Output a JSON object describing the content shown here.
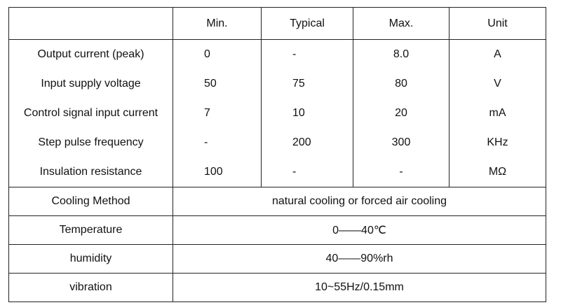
{
  "table": {
    "header": [
      "Min.",
      "Typical",
      "Max.",
      "Unit"
    ],
    "rows": [
      [
        "Output current (peak)",
        "0",
        "-",
        "8.0",
        "A"
      ],
      [
        "Input supply voltage",
        "50",
        "75",
        "80",
        "V"
      ],
      [
        "Control signal input current",
        "7",
        "10",
        "20",
        "mA"
      ],
      [
        "Step pulse frequency",
        "-",
        "200",
        "300",
        "KHz"
      ],
      [
        "Insulation resistance",
        "100",
        "-",
        "-",
        "MΩ"
      ]
    ],
    "merged_rows": [
      [
        "Cooling Method",
        "natural cooling or forced air cooling"
      ],
      [
        "Temperature",
        "0——40℃"
      ],
      [
        "humidity",
        "40——90%rh"
      ],
      [
        "vibration",
        "10~55Hz/0.15mm"
      ]
    ]
  }
}
